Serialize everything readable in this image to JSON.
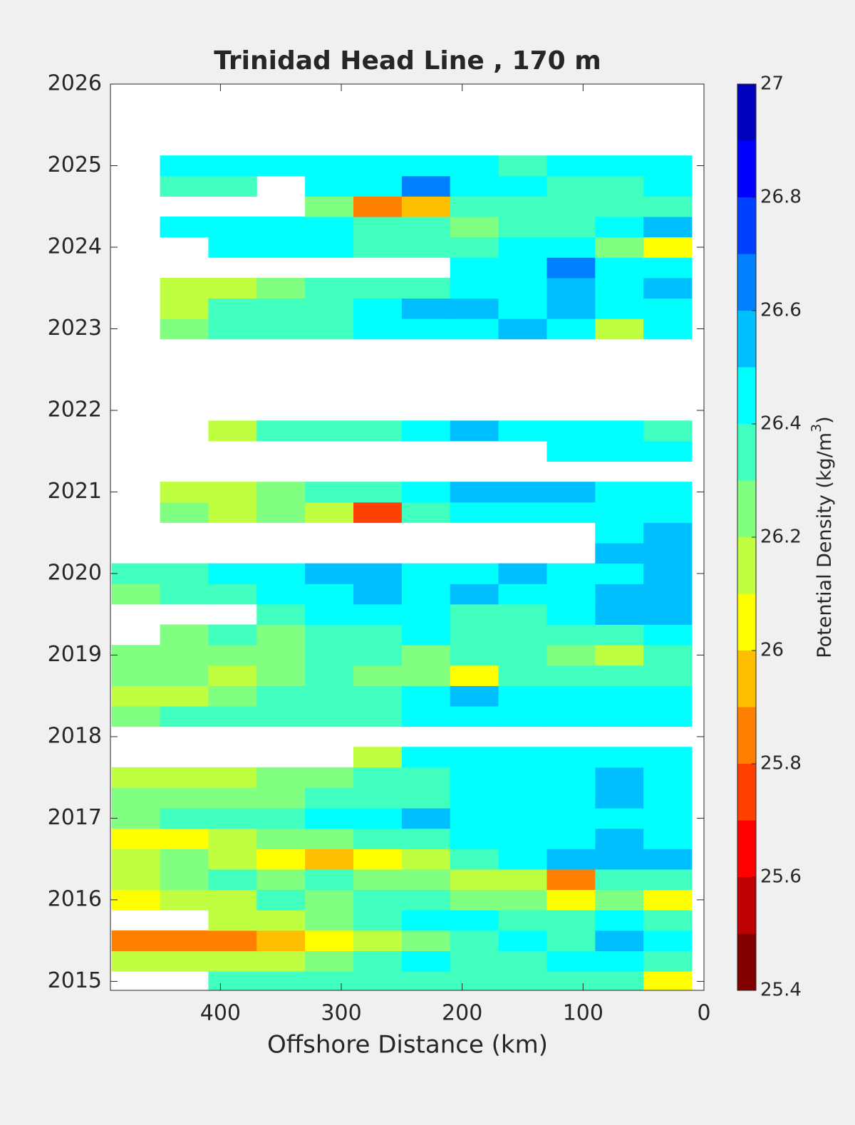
{
  "chart_data": {
    "type": "contour",
    "title": "Trinidad Head Line , 170 m",
    "xlabel": "Offshore Distance (km)",
    "xlim": [
      491,
      0
    ],
    "xticks": [
      400,
      300,
      200,
      100,
      0
    ],
    "ylim": [
      2014.89,
      2026
    ],
    "yticks": [
      2015,
      2016,
      2017,
      2018,
      2019,
      2020,
      2021,
      2022,
      2023,
      2024,
      2025,
      2026
    ],
    "x": [
      470,
      430,
      390,
      350,
      310,
      270,
      230,
      190,
      150,
      110,
      70,
      30
    ],
    "y": [
      2015.0,
      2015.25,
      2015.5,
      2015.75,
      2016.0,
      2016.25,
      2016.5,
      2016.75,
      2017.0,
      2017.25,
      2017.5,
      2017.75,
      2018.25,
      2018.5,
      2018.75,
      2019.0,
      2019.25,
      2019.5,
      2019.75,
      2020.0,
      2020.25,
      2020.5,
      2020.75,
      2021.0,
      2021.5,
      2021.75,
      2023.0,
      2023.25,
      2023.5,
      2023.75,
      2024.0,
      2024.25,
      2024.5,
      2024.75,
      2025.0
    ],
    "z": [
      [
        null,
        null,
        26.35,
        26.35,
        26.35,
        26.35,
        26.35,
        26.3,
        26.35,
        26.35,
        26.35,
        26.0
      ],
      [
        26.15,
        26.1,
        26.1,
        26.15,
        26.25,
        26.3,
        26.4,
        26.35,
        26.3,
        26.45,
        26.4,
        26.3
      ],
      [
        25.85,
        25.85,
        25.85,
        25.9,
        26.05,
        26.15,
        26.25,
        26.3,
        26.4,
        26.35,
        26.5,
        26.4
      ],
      [
        null,
        null,
        26.1,
        26.15,
        26.2,
        26.3,
        26.4,
        26.45,
        26.35,
        26.3,
        26.4,
        26.35
      ],
      [
        26.05,
        26.15,
        26.15,
        26.3,
        26.25,
        26.3,
        26.35,
        26.25,
        26.2,
        26.05,
        26.25,
        26.05
      ],
      [
        26.15,
        26.25,
        26.3,
        26.25,
        26.3,
        26.25,
        26.2,
        26.1,
        26.15,
        25.85,
        26.3,
        26.35
      ],
      [
        26.1,
        26.2,
        26.15,
        26.05,
        25.95,
        26.05,
        26.15,
        26.3,
        26.4,
        26.55,
        26.55,
        26.5
      ],
      [
        26.05,
        26.05,
        26.15,
        26.25,
        26.25,
        26.3,
        26.35,
        26.4,
        26.45,
        26.45,
        26.5,
        26.45
      ],
      [
        26.2,
        26.3,
        26.3,
        26.35,
        26.4,
        26.4,
        26.5,
        26.45,
        26.45,
        26.4,
        26.45,
        26.45
      ],
      [
        26.25,
        26.25,
        26.2,
        26.2,
        26.3,
        26.3,
        26.35,
        26.4,
        26.45,
        26.45,
        26.5,
        26.45
      ],
      [
        26.15,
        26.1,
        26.15,
        26.2,
        26.25,
        26.3,
        26.35,
        26.4,
        26.45,
        26.45,
        26.55,
        26.45
      ],
      [
        null,
        null,
        null,
        null,
        null,
        26.1,
        26.45,
        26.45,
        26.45,
        26.45,
        26.45,
        26.45
      ],
      [
        26.25,
        26.3,
        26.3,
        26.3,
        26.3,
        26.35,
        26.4,
        26.4,
        26.45,
        26.45,
        26.45,
        26.4
      ],
      [
        26.15,
        26.15,
        26.2,
        26.3,
        26.35,
        26.35,
        26.45,
        26.5,
        26.45,
        26.45,
        26.4,
        26.45
      ],
      [
        26.25,
        26.2,
        26.1,
        26.25,
        26.3,
        26.25,
        26.2,
        26.05,
        26.3,
        26.35,
        26.3,
        26.35
      ],
      [
        26.25,
        26.25,
        26.2,
        26.25,
        26.3,
        26.3,
        26.25,
        26.3,
        26.3,
        26.2,
        26.1,
        26.3
      ],
      [
        null,
        26.25,
        26.3,
        26.25,
        26.3,
        26.35,
        26.4,
        26.35,
        26.3,
        26.3,
        26.35,
        26.4
      ],
      [
        null,
        null,
        null,
        26.35,
        26.4,
        26.4,
        26.45,
        26.3,
        26.35,
        26.4,
        26.5,
        26.55
      ],
      [
        26.25,
        26.3,
        26.35,
        26.4,
        26.45,
        26.5,
        26.45,
        26.5,
        26.45,
        26.45,
        26.5,
        26.5
      ],
      [
        26.3,
        26.35,
        26.4,
        26.45,
        26.55,
        26.5,
        26.45,
        26.45,
        26.5,
        26.45,
        26.45,
        26.5
      ],
      [
        null,
        null,
        null,
        null,
        null,
        null,
        null,
        null,
        null,
        null,
        26.5,
        26.5
      ],
      [
        null,
        null,
        null,
        null,
        null,
        null,
        null,
        null,
        null,
        null,
        26.45,
        26.5
      ],
      [
        null,
        26.2,
        26.15,
        26.2,
        26.1,
        25.75,
        26.3,
        26.45,
        26.45,
        26.45,
        26.45,
        26.45
      ],
      [
        null,
        26.15,
        26.1,
        26.2,
        26.3,
        26.35,
        26.45,
        26.5,
        26.55,
        26.5,
        26.45,
        26.45
      ],
      [
        null,
        null,
        null,
        null,
        null,
        null,
        null,
        null,
        null,
        26.45,
        26.4,
        26.45
      ],
      [
        null,
        null,
        26.1,
        26.3,
        26.3,
        26.35,
        26.45,
        26.5,
        26.45,
        26.45,
        26.4,
        26.35
      ],
      [
        null,
        26.25,
        26.3,
        26.35,
        26.35,
        26.4,
        26.45,
        26.45,
        26.5,
        26.4,
        26.15,
        26.45
      ],
      [
        null,
        26.15,
        26.3,
        26.3,
        26.35,
        26.45,
        26.5,
        26.55,
        26.45,
        26.55,
        26.45,
        26.45
      ],
      [
        null,
        26.15,
        26.15,
        26.2,
        26.3,
        26.35,
        26.3,
        26.4,
        26.45,
        26.55,
        26.45,
        26.5
      ],
      [
        null,
        null,
        null,
        null,
        null,
        null,
        null,
        26.4,
        26.45,
        26.6,
        26.45,
        26.45
      ],
      [
        null,
        null,
        26.45,
        26.45,
        26.4,
        26.35,
        26.3,
        26.35,
        26.45,
        26.45,
        26.2,
        26.0
      ],
      [
        null,
        26.45,
        26.4,
        26.45,
        26.4,
        26.35,
        26.3,
        26.25,
        26.3,
        26.35,
        26.45,
        26.55
      ],
      [
        null,
        null,
        null,
        null,
        26.25,
        25.85,
        25.95,
        26.3,
        26.3,
        26.3,
        26.3,
        26.35
      ],
      [
        null,
        26.35,
        26.35,
        null,
        26.45,
        26.45,
        26.65,
        26.45,
        26.4,
        26.3,
        26.35,
        26.45
      ],
      [
        null,
        26.45,
        26.4,
        26.45,
        26.45,
        26.45,
        26.45,
        26.4,
        26.35,
        26.4,
        26.45,
        26.45
      ]
    ],
    "levels": [
      25.4,
      25.5,
      25.6,
      25.7,
      25.8,
      25.9,
      26.0,
      26.1,
      26.2,
      26.3,
      26.4,
      26.5,
      26.6,
      26.7,
      26.8,
      26.9,
      27.0
    ],
    "colors": [
      "#800000",
      "#bf0000",
      "#ff0000",
      "#ff4000",
      "#ff8000",
      "#ffbf00",
      "#ffff00",
      "#bfff40",
      "#80ff80",
      "#40ffbf",
      "#00ffff",
      "#00bfff",
      "#0080ff",
      "#0040ff",
      "#0000ff",
      "#0000bf"
    ],
    "colorbar": {
      "lim": [
        25.4,
        27
      ],
      "ticks": [
        25.4,
        25.6,
        25.8,
        26,
        26.2,
        26.4,
        26.6,
        26.8,
        27
      ],
      "label": "Potential Density (kg/m",
      "label_superscript": "3",
      "label_end": ")"
    }
  }
}
